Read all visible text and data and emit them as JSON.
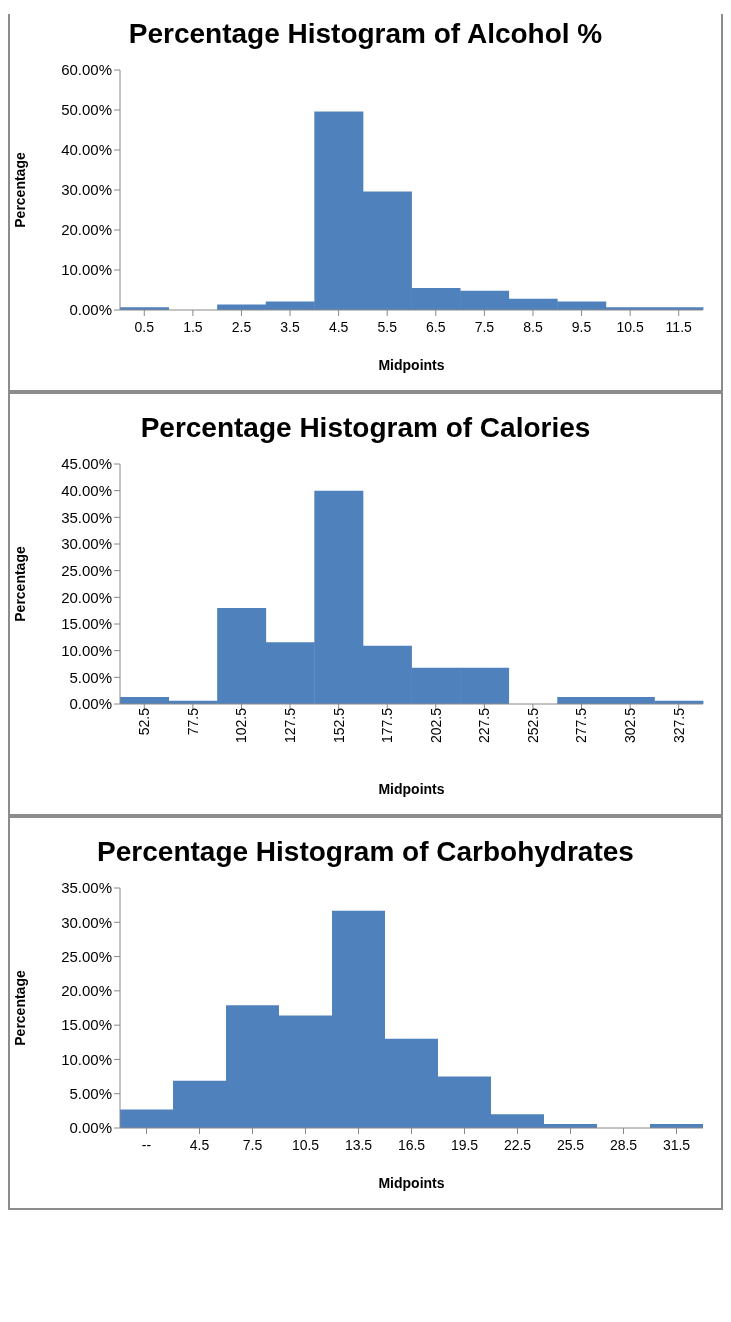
{
  "chart_data": [
    {
      "type": "bar",
      "title": "Percentage Histogram of Alcohol %",
      "xlabel": "Midpoints",
      "ylabel": "Percentage",
      "categories": [
        "0.5",
        "1.5",
        "2.5",
        "3.5",
        "4.5",
        "5.5",
        "6.5",
        "7.5",
        "8.5",
        "9.5",
        "10.5",
        "11.5"
      ],
      "values": [
        0.7,
        0,
        1.4,
        2.1,
        49.6,
        29.6,
        5.5,
        4.8,
        2.8,
        2.1,
        0.7,
        0.7
      ],
      "color": "#4f81bd",
      "ylim": [
        0,
        60
      ],
      "yticks": [
        {
          "value": 0,
          "label": "0.00%"
        },
        {
          "value": 10,
          "label": "10.00%"
        },
        {
          "value": 20,
          "label": "20.00%"
        },
        {
          "value": 30,
          "label": "30.00%"
        },
        {
          "value": 40,
          "label": "40.00%"
        },
        {
          "value": 50,
          "label": "50.00%"
        },
        {
          "value": 60,
          "label": "60.00%"
        }
      ],
      "grid": false,
      "legend": false
    },
    {
      "type": "bar",
      "title": "Percentage Histogram of Calories",
      "xlabel": "Midpoints",
      "ylabel": "Percentage",
      "categories": [
        "52.5",
        "77.5",
        "102.5",
        "127.5",
        "152.5",
        "177.5",
        "202.5",
        "227.5",
        "252.5",
        "277.5",
        "302.5",
        "327.5"
      ],
      "values": [
        1.3,
        0.6,
        18.0,
        11.6,
        40.0,
        10.9,
        6.8,
        6.8,
        0,
        1.3,
        1.3,
        0.6
      ],
      "color": "#4f81bd",
      "ylim": [
        0,
        45
      ],
      "yticks": [
        {
          "value": 0,
          "label": "0.00%"
        },
        {
          "value": 5,
          "label": "5.00%"
        },
        {
          "value": 10,
          "label": "10.00%"
        },
        {
          "value": 15,
          "label": "15.00%"
        },
        {
          "value": 20,
          "label": "20.00%"
        },
        {
          "value": 25,
          "label": "25.00%"
        },
        {
          "value": 30,
          "label": "30.00%"
        },
        {
          "value": 35,
          "label": "35.00%"
        },
        {
          "value": 40,
          "label": "40.00%"
        },
        {
          "value": 45,
          "label": "45.00%"
        }
      ],
      "grid": false,
      "legend": false
    },
    {
      "type": "bar",
      "title": "Percentage Histogram of Carbohydrates",
      "xlabel": "Midpoints",
      "ylabel": "Percentage",
      "categories": [
        "--",
        "4.5",
        "7.5",
        "10.5",
        "13.5",
        "16.5",
        "19.5",
        "22.5",
        "25.5",
        "28.5",
        "31.5"
      ],
      "values": [
        2.7,
        6.9,
        17.9,
        16.4,
        31.7,
        13.0,
        7.5,
        2.0,
        0.6,
        0,
        0.6
      ],
      "color": "#4f81bd",
      "ylim": [
        0,
        35
      ],
      "yticks": [
        {
          "value": 0,
          "label": "0.00%"
        },
        {
          "value": 5,
          "label": "5.00%"
        },
        {
          "value": 10,
          "label": "10.00%"
        },
        {
          "value": 15,
          "label": "15.00%"
        },
        {
          "value": 20,
          "label": "20.00%"
        },
        {
          "value": 25,
          "label": "25.00%"
        },
        {
          "value": 30,
          "label": "30.00%"
        },
        {
          "value": 35,
          "label": "35.00%"
        }
      ],
      "grid": false,
      "legend": false
    }
  ]
}
